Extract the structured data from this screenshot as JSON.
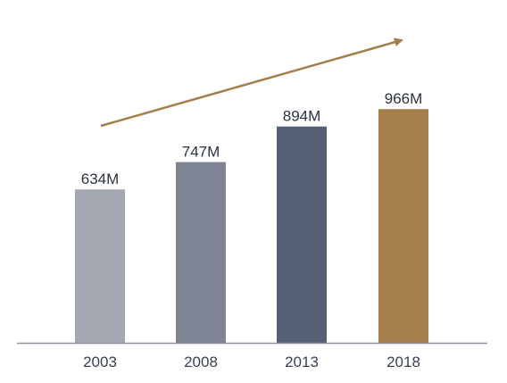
{
  "chart_data": {
    "type": "bar",
    "title": "",
    "xlabel": "",
    "ylabel": "",
    "categories": [
      "2003",
      "2008",
      "2013",
      "2018"
    ],
    "values": [
      634,
      747,
      894,
      966
    ],
    "value_labels": [
      "634M",
      "747M",
      "894M",
      "966M"
    ],
    "unit": "M",
    "ylim": [
      0,
      1000
    ],
    "grid": false,
    "legend": "none",
    "trend_arrow": true,
    "colors": {
      "bars": [
        "#a4a8b1",
        "#7e8493",
        "#566074",
        "#a47e4b"
      ],
      "axis": "#8e93a1",
      "arrow": "#a47e4b",
      "text": "#2b3340"
    }
  }
}
